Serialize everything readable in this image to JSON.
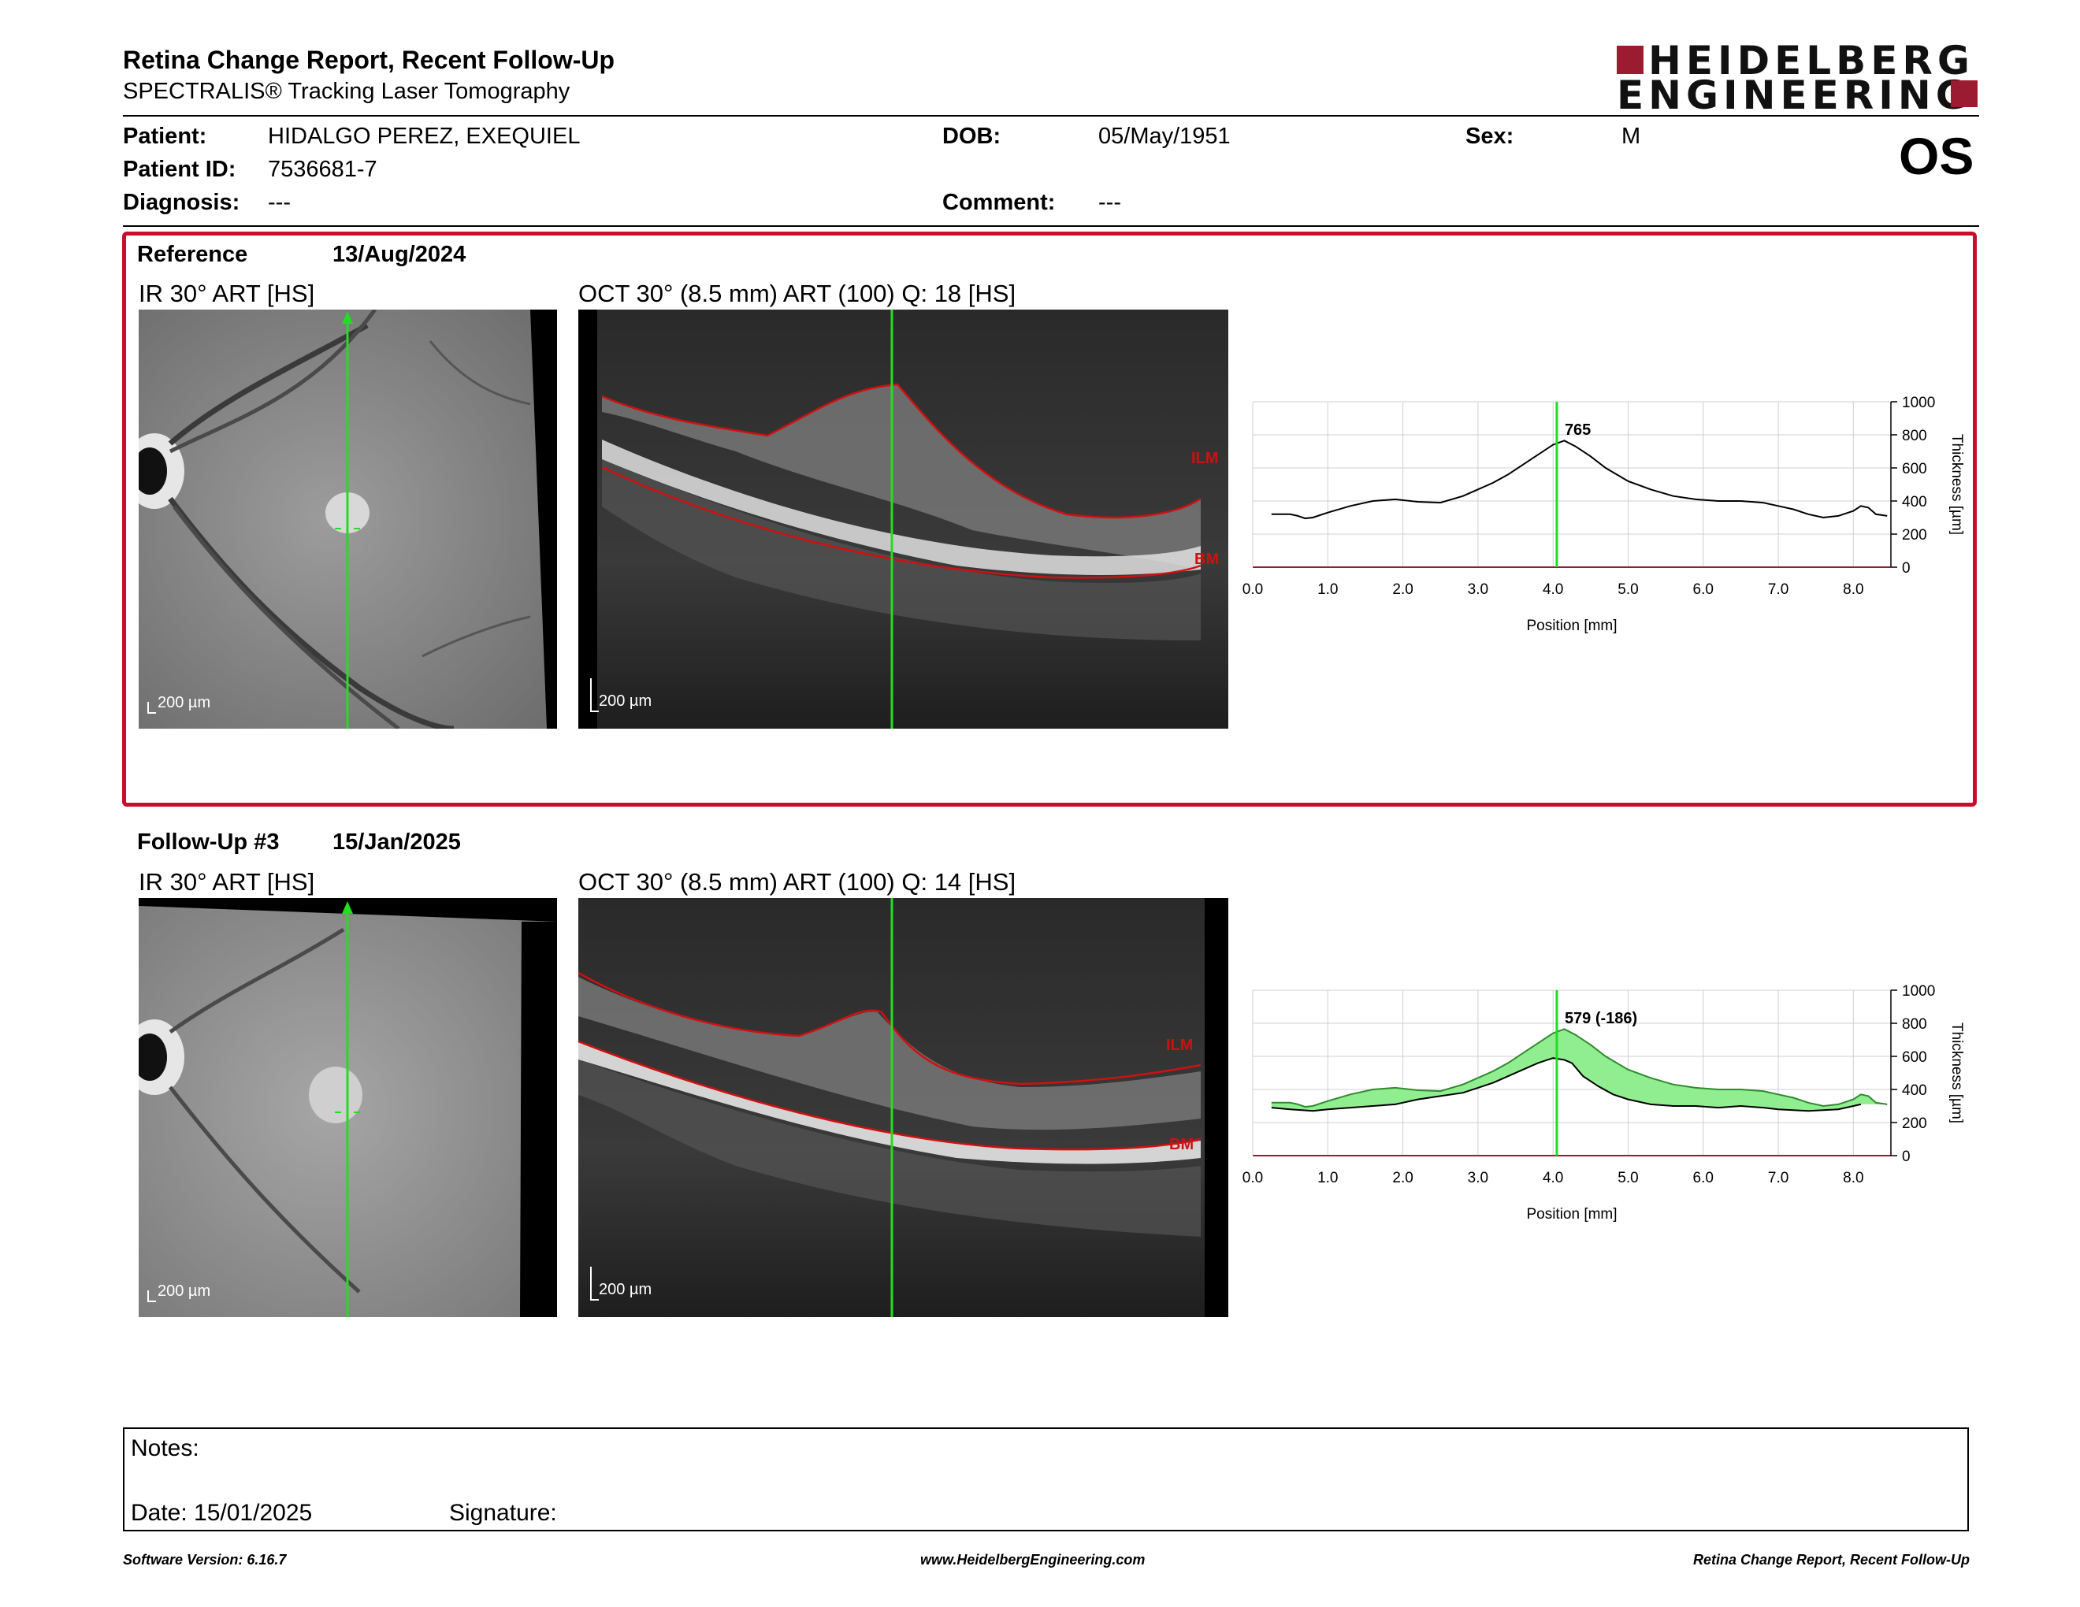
{
  "header": {
    "title": "Retina Change Report, Recent Follow-Up",
    "subtitle": "SPECTRALIS® Tracking Laser Tomography",
    "logo_line1": "HEIDELBERG",
    "logo_line2": "ENGINEERING",
    "eye": "OS"
  },
  "patient": {
    "patient_label": "Patient:",
    "patient_value": "HIDALGO PEREZ, EXEQUIEL",
    "id_label": "Patient ID:",
    "id_value": "7536681-7",
    "diagnosis_label": "Diagnosis:",
    "diagnosis_value": "---",
    "dob_label": "DOB:",
    "dob_value": "05/May/1951",
    "comment_label": "Comment:",
    "comment_value": "---",
    "sex_label": "Sex:",
    "sex_value": "M"
  },
  "reference": {
    "label": "Reference",
    "date": "13/Aug/2024",
    "ir_label": "IR 30° ART [HS]",
    "oct_label": "OCT 30° (8.5 mm) ART (100) Q: 18 [HS]",
    "ir_scale": "200 µm",
    "oct_scale": "200 µm",
    "ilm": "ILM",
    "bm": "BM"
  },
  "followup": {
    "label": "Follow-Up #3",
    "date": "15/Jan/2025",
    "ir_label": "IR 30° ART [HS]",
    "oct_label": "OCT 30° (8.5 mm) ART (100) Q: 14 [HS]",
    "ir_scale": "200 µm",
    "oct_scale": "200 µm",
    "ilm": "ILM",
    "bm": "BM"
  },
  "notes": {
    "notes_label": "Notes:",
    "date_text": "Date: 15/01/2025",
    "signature_label": "Signature:"
  },
  "footer": {
    "left": "Software Version: 6.16.7",
    "center": "www.HeidelbergEngineering.com",
    "right": "Retina Change Report, Recent Follow-Up"
  },
  "colors": {
    "accent_red": "#c8102e",
    "scan_line": "#22dd22",
    "change_fill": "#90ee90"
  },
  "chart_data": [
    {
      "type": "line",
      "xlabel": "Position [mm]",
      "ylabel": "Thickness [µm]",
      "xlim": [
        0.0,
        8.5
      ],
      "ylim": [
        0,
        1000
      ],
      "x_ticks": [
        "0.0",
        "1.0",
        "2.0",
        "3.0",
        "4.0",
        "5.0",
        "6.0",
        "7.0",
        "8.0"
      ],
      "y_ticks": [
        "0",
        "200",
        "400",
        "600",
        "800",
        "1000"
      ],
      "marker_x": 4.05,
      "marker_label": "765",
      "series": [
        {
          "x": [
            0.25,
            0.5,
            0.6,
            0.7,
            0.8,
            1.0,
            1.3,
            1.6,
            1.9,
            2.2,
            2.5,
            2.8,
            3.0,
            3.2,
            3.4,
            3.6,
            3.8,
            4.0,
            4.15,
            4.3,
            4.5,
            4.7,
            5.0,
            5.3,
            5.6,
            5.9,
            6.2,
            6.5,
            6.8,
            7.0,
            7.2,
            7.4,
            7.6,
            7.8,
            8.0,
            8.1,
            8.2,
            8.3,
            8.45
          ],
          "y": [
            320,
            320,
            310,
            295,
            300,
            330,
            370,
            400,
            410,
            395,
            390,
            430,
            470,
            510,
            560,
            620,
            680,
            740,
            765,
            730,
            670,
            600,
            520,
            470,
            430,
            410,
            400,
            400,
            390,
            370,
            350,
            320,
            300,
            310,
            340,
            370,
            360,
            320,
            310
          ]
        }
      ]
    },
    {
      "type": "area",
      "xlabel": "Position [mm]",
      "ylabel": "Thickness [µm]",
      "xlim": [
        0.0,
        8.5
      ],
      "ylim": [
        0,
        1000
      ],
      "x_ticks": [
        "0.0",
        "1.0",
        "2.0",
        "3.0",
        "4.0",
        "5.0",
        "6.0",
        "7.0",
        "8.0"
      ],
      "y_ticks": [
        "0",
        "200",
        "400",
        "600",
        "800",
        "1000"
      ],
      "marker_x": 4.05,
      "marker_label": "579 (-186)",
      "series": [
        {
          "x": [
            0.25,
            0.5,
            0.6,
            0.7,
            0.8,
            1.0,
            1.3,
            1.6,
            1.9,
            2.2,
            2.5,
            2.8,
            3.0,
            3.2,
            3.4,
            3.6,
            3.8,
            4.0,
            4.15,
            4.3,
            4.5,
            4.7,
            5.0,
            5.3,
            5.6,
            5.9,
            6.2,
            6.5,
            6.8,
            7.0,
            7.2,
            7.4,
            7.6,
            7.8,
            8.0,
            8.1,
            8.2,
            8.3,
            8.45
          ],
          "y": [
            320,
            320,
            310,
            295,
            300,
            330,
            370,
            400,
            410,
            395,
            390,
            430,
            470,
            510,
            560,
            620,
            680,
            740,
            765,
            730,
            670,
            600,
            520,
            470,
            430,
            410,
            400,
            400,
            390,
            370,
            350,
            320,
            300,
            310,
            340,
            370,
            360,
            320,
            310
          ]
        },
        {
          "x": [
            0.25,
            0.5,
            0.8,
            1.0,
            1.3,
            1.6,
            1.9,
            2.2,
            2.5,
            2.8,
            3.0,
            3.2,
            3.4,
            3.6,
            3.8,
            4.0,
            4.15,
            4.25,
            4.4,
            4.6,
            4.8,
            5.0,
            5.3,
            5.6,
            5.9,
            6.2,
            6.5,
            6.8,
            7.0,
            7.2,
            7.4,
            7.6,
            7.8,
            8.0,
            8.1
          ],
          "y": [
            290,
            280,
            270,
            280,
            290,
            300,
            310,
            340,
            360,
            380,
            410,
            440,
            480,
            520,
            560,
            590,
            579,
            560,
            480,
            420,
            370,
            340,
            310,
            300,
            300,
            290,
            300,
            290,
            280,
            275,
            270,
            275,
            280,
            300,
            310
          ]
        }
      ]
    }
  ]
}
